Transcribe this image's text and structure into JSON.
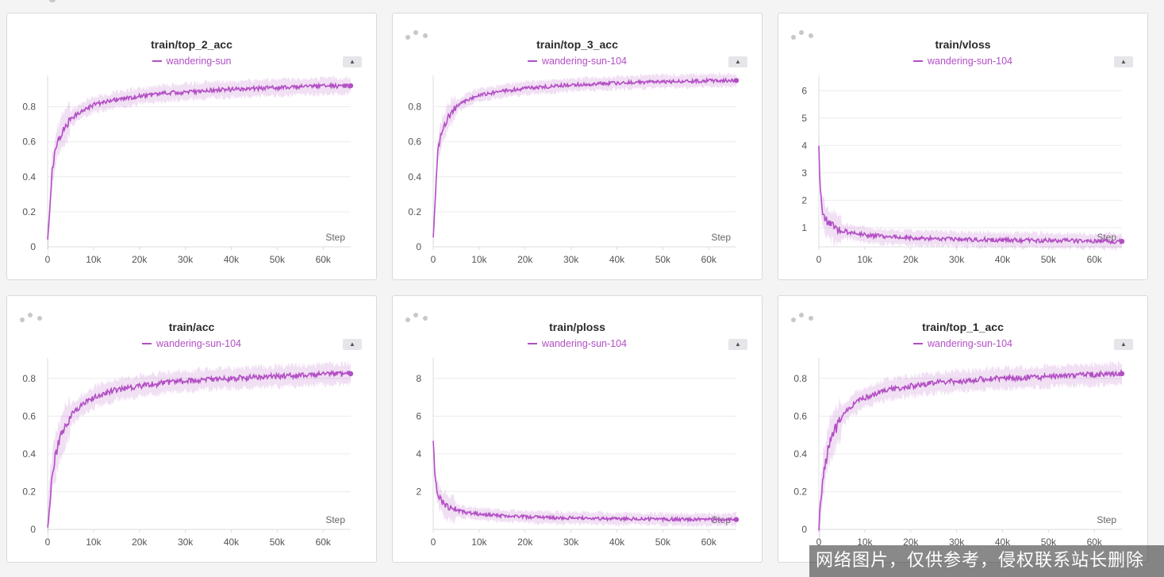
{
  "chart_data": [
    {
      "type": "line",
      "title": "train/top_2_acc",
      "series": [
        {
          "name": "wandering-sun",
          "x": [
            0,
            1000,
            2000,
            3000,
            5000,
            7500,
            10000,
            15000,
            20000,
            25000,
            30000,
            35000,
            40000,
            45000,
            50000,
            55000,
            60000,
            65000,
            66000
          ],
          "values": [
            0.03,
            0.45,
            0.58,
            0.65,
            0.73,
            0.78,
            0.81,
            0.84,
            0.86,
            0.875,
            0.885,
            0.893,
            0.9,
            0.905,
            0.91,
            0.915,
            0.918,
            0.92,
            0.92
          ]
        }
      ],
      "xlabel": "Step",
      "xticks": [
        "0",
        "10k",
        "20k",
        "30k",
        "40k",
        "50k",
        "60k"
      ],
      "yticks": [
        "0",
        "0.2",
        "0.4",
        "0.6",
        "0.8"
      ],
      "xlim": [
        0,
        66000
      ],
      "ylim": [
        0,
        0.97
      ],
      "band": 0.05,
      "grid": true,
      "color": "#b24fc4"
    },
    {
      "type": "line",
      "title": "train/top_3_acc",
      "series": [
        {
          "name": "wandering-sun-104",
          "x": [
            0,
            1000,
            2000,
            3000,
            5000,
            7500,
            10000,
            15000,
            20000,
            25000,
            30000,
            35000,
            40000,
            45000,
            50000,
            55000,
            60000,
            65000,
            66000
          ],
          "values": [
            0.05,
            0.55,
            0.67,
            0.73,
            0.8,
            0.84,
            0.865,
            0.89,
            0.905,
            0.915,
            0.925,
            0.93,
            0.935,
            0.94,
            0.943,
            0.946,
            0.949,
            0.95,
            0.95
          ]
        }
      ],
      "xlabel": "Step",
      "xticks": [
        "0",
        "10k",
        "20k",
        "30k",
        "40k",
        "50k",
        "60k"
      ],
      "yticks": [
        "0",
        "0.2",
        "0.4",
        "0.6",
        "0.8"
      ],
      "xlim": [
        0,
        66000
      ],
      "ylim": [
        0,
        0.97
      ],
      "band": 0.04,
      "grid": true,
      "color": "#b24fc4"
    },
    {
      "type": "line",
      "title": "train/vloss",
      "series": [
        {
          "name": "wandering-sun-104",
          "x": [
            0,
            300,
            800,
            1500,
            2500,
            4000,
            6000,
            8000,
            10000,
            15000,
            20000,
            25000,
            30000,
            35000,
            40000,
            45000,
            50000,
            55000,
            60000,
            65000,
            66000
          ],
          "values": [
            4.0,
            2.3,
            1.6,
            1.3,
            1.1,
            0.95,
            0.85,
            0.78,
            0.74,
            0.67,
            0.63,
            0.6,
            0.58,
            0.56,
            0.55,
            0.54,
            0.53,
            0.52,
            0.51,
            0.5,
            0.5
          ]
        }
      ],
      "xlabel": "Step",
      "xticks": [
        "0",
        "10k",
        "20k",
        "30k",
        "40k",
        "50k",
        "60k"
      ],
      "yticks": [
        "1",
        "2",
        "3",
        "4",
        "5",
        "6"
      ],
      "xlim": [
        0,
        66000
      ],
      "ylim": [
        0.3,
        6.5
      ],
      "band": 0.3,
      "grid": true,
      "color": "#b24fc4"
    },
    {
      "type": "line",
      "title": "train/acc",
      "series": [
        {
          "name": "wandering-sun-104",
          "x": [
            0,
            1000,
            2000,
            3000,
            5000,
            7500,
            10000,
            15000,
            20000,
            25000,
            30000,
            35000,
            40000,
            45000,
            50000,
            55000,
            60000,
            65000,
            66000
          ],
          "values": [
            0.02,
            0.3,
            0.42,
            0.5,
            0.6,
            0.66,
            0.7,
            0.74,
            0.76,
            0.775,
            0.785,
            0.795,
            0.8,
            0.805,
            0.81,
            0.815,
            0.82,
            0.825,
            0.825
          ]
        }
      ],
      "xlabel": "Step",
      "xticks": [
        "0",
        "10k",
        "20k",
        "30k",
        "40k",
        "50k",
        "60k"
      ],
      "yticks": [
        "0",
        "0.2",
        "0.4",
        "0.6",
        "0.8"
      ],
      "xlim": [
        0,
        66000
      ],
      "ylim": [
        0,
        0.9
      ],
      "band": 0.06,
      "grid": true,
      "color": "#b24fc4"
    },
    {
      "type": "line",
      "title": "train/ploss",
      "series": [
        {
          "name": "wandering-sun-104",
          "x": [
            0,
            300,
            800,
            1500,
            2500,
            4000,
            6000,
            8000,
            10000,
            15000,
            20000,
            25000,
            30000,
            35000,
            40000,
            45000,
            50000,
            55000,
            60000,
            65000,
            66000
          ],
          "values": [
            4.8,
            3.0,
            2.1,
            1.6,
            1.3,
            1.1,
            0.95,
            0.87,
            0.8,
            0.72,
            0.67,
            0.63,
            0.6,
            0.58,
            0.56,
            0.55,
            0.54,
            0.53,
            0.52,
            0.52,
            0.52
          ]
        }
      ],
      "xlabel": "Step",
      "xticks": [
        "0",
        "10k",
        "20k",
        "30k",
        "40k",
        "50k",
        "60k"
      ],
      "yticks": [
        "2",
        "4",
        "6",
        "8"
      ],
      "xlim": [
        0,
        66000
      ],
      "ylim": [
        0,
        9.0
      ],
      "band": 0.35,
      "grid": true,
      "color": "#b24fc4"
    },
    {
      "type": "line",
      "title": "train/top_1_acc",
      "series": [
        {
          "name": "wandering-sun-104",
          "x": [
            0,
            1000,
            2000,
            3000,
            5000,
            7500,
            10000,
            15000,
            20000,
            25000,
            30000,
            35000,
            40000,
            45000,
            50000,
            55000,
            60000,
            65000,
            66000
          ],
          "values": [
            0.02,
            0.3,
            0.42,
            0.5,
            0.6,
            0.66,
            0.7,
            0.74,
            0.76,
            0.775,
            0.785,
            0.795,
            0.8,
            0.805,
            0.81,
            0.815,
            0.82,
            0.825,
            0.825
          ]
        }
      ],
      "xlabel": "Step",
      "xticks": [
        "0",
        "10k",
        "20k",
        "30k",
        "40k",
        "50k",
        "60k"
      ],
      "yticks": [
        "0",
        "0.2",
        "0.4",
        "0.6",
        "0.8"
      ],
      "xlim": [
        0,
        66000
      ],
      "ylim": [
        0,
        0.9
      ],
      "band": 0.06,
      "grid": true,
      "color": "#b24fc4"
    }
  ],
  "watermark": "网络图片，仅供参考，侵权联系站长删除"
}
